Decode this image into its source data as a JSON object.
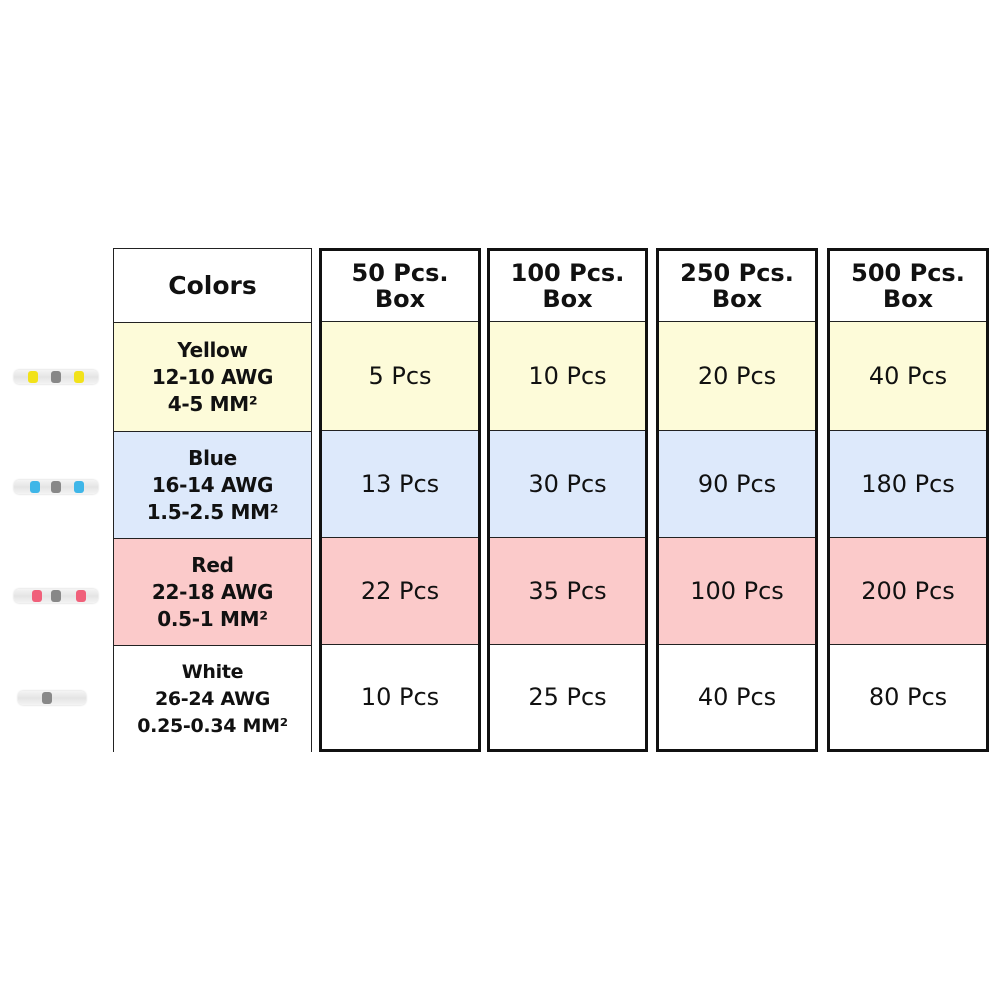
{
  "table": {
    "header_colors": "Colors",
    "boxes": [
      {
        "line1": "50 Pcs.",
        "line2": "Box"
      },
      {
        "line1": "100 Pcs.",
        "line2": "Box"
      },
      {
        "line1": "250 Pcs.",
        "line2": "Box"
      },
      {
        "line1": "500 Pcs.",
        "line2": "Box"
      }
    ],
    "rows": [
      {
        "color": "Yellow",
        "awg": "12-10 AWG",
        "mm": "4-5 MM²",
        "fill": "#fdfbd9",
        "band": "#f2e21a",
        "values": [
          "5 Pcs",
          "10 Pcs",
          "20 Pcs",
          "40 Pcs"
        ]
      },
      {
        "color": "Blue",
        "awg": "16-14 AWG",
        "mm": "1.5-2.5 MM²",
        "fill": "#dde9fb",
        "band": "#3fb6e8",
        "values": [
          "13 Pcs",
          "30 Pcs",
          "90 Pcs",
          "180 Pcs"
        ]
      },
      {
        "color": "Red",
        "awg": "22-18 AWG",
        "mm": "0.5-1 MM²",
        "fill": "#fbcaca",
        "band": "#f0607a",
        "values": [
          "22 Pcs",
          "35 Pcs",
          "100 Pcs",
          "200 Pcs"
        ]
      },
      {
        "color": "White",
        "awg": "26-24 AWG",
        "mm": "0.25-0.34 MM²",
        "fill": "#ffffff",
        "band": "#e8e8e8",
        "values": [
          "10 Pcs",
          "25 Pcs",
          "40 Pcs",
          "80 Pcs"
        ]
      }
    ]
  }
}
